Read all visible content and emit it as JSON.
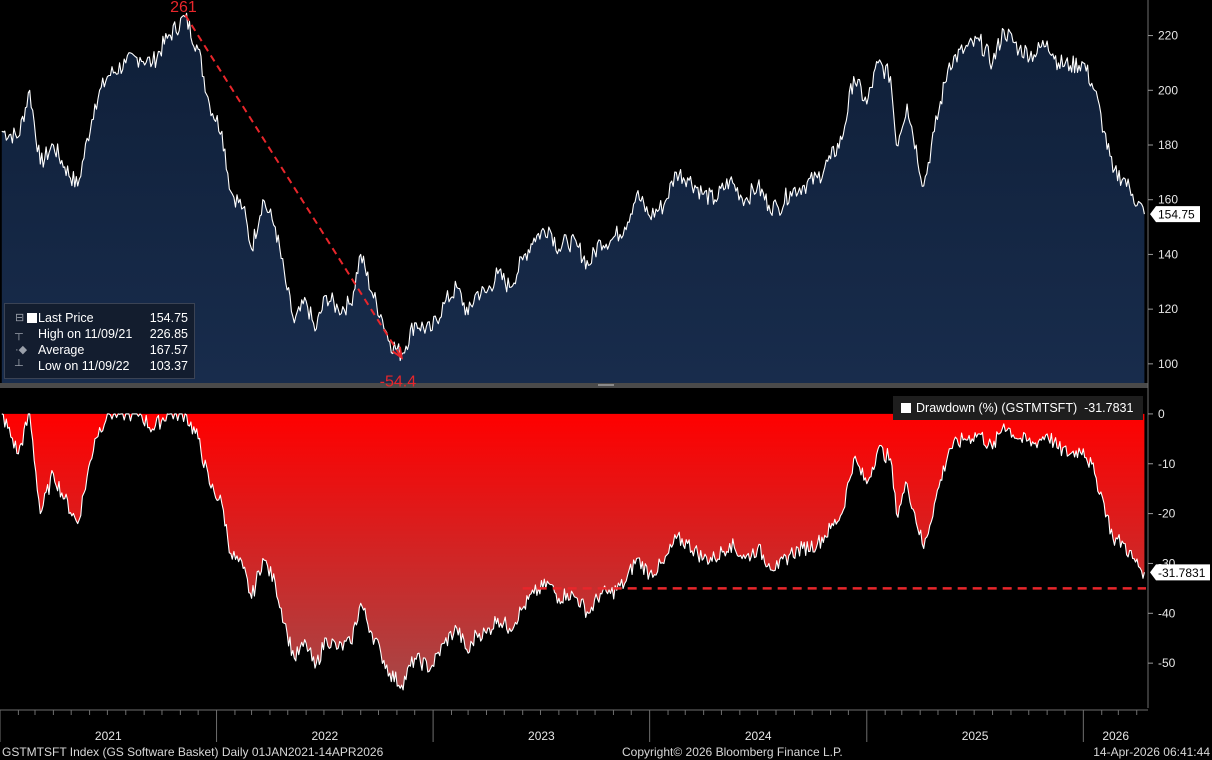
{
  "chart_data": [
    {
      "type": "area",
      "panel": "price",
      "series": [
        {
          "name": "Last Price",
          "x": [
            "2021-01-04",
            "2021-02-01",
            "2021-02-20",
            "2021-03-10",
            "2021-04-01",
            "2021-04-20",
            "2021-05-12",
            "2021-06-10",
            "2021-07-01",
            "2021-08-01",
            "2021-08-25",
            "2021-09-15",
            "2021-10-10",
            "2021-11-09",
            "2021-12-01",
            "2021-12-20",
            "2022-01-10",
            "2022-01-25",
            "2022-02-15",
            "2022-03-01",
            "2022-03-20",
            "2022-04-10",
            "2022-04-30",
            "2022-05-12",
            "2022-06-01",
            "2022-06-16",
            "2022-07-05",
            "2022-07-25",
            "2022-08-15",
            "2022-09-01",
            "2022-09-20",
            "2022-10-05",
            "2022-10-20",
            "2022-11-09",
            "2022-12-01",
            "2022-12-28",
            "2023-01-20",
            "2023-02-10",
            "2023-03-01",
            "2023-03-15",
            "2023-04-01",
            "2023-04-20",
            "2023-05-10",
            "2023-06-01",
            "2023-06-20",
            "2023-07-15",
            "2023-08-01",
            "2023-08-15",
            "2023-09-01",
            "2023-09-20",
            "2023-10-10",
            "2023-10-27",
            "2023-11-20",
            "2023-12-10",
            "2024-01-01",
            "2024-01-25",
            "2024-02-15",
            "2024-03-05",
            "2024-04-01",
            "2024-04-20",
            "2024-05-15",
            "2024-06-10",
            "2024-07-01",
            "2024-07-20",
            "2024-08-05",
            "2024-08-25",
            "2024-09-15",
            "2024-10-10",
            "2024-11-01",
            "2024-11-20",
            "2024-12-10",
            "2025-01-01",
            "2025-01-20",
            "2025-02-10",
            "2025-02-20",
            "2025-03-10",
            "2025-04-07",
            "2025-04-25",
            "2025-05-20",
            "2025-06-15",
            "2025-07-10",
            "2025-08-01",
            "2025-08-20",
            "2025-09-15",
            "2025-10-10",
            "2025-11-01",
            "2025-11-20",
            "2025-12-10",
            "2026-01-01",
            "2026-01-20",
            "2026-02-05",
            "2026-02-20",
            "2026-03-10",
            "2026-03-25",
            "2026-04-14"
          ],
          "values": [
            185,
            183,
            200,
            173,
            180,
            172,
            165,
            195,
            205,
            210,
            212,
            210,
            219,
            226.85,
            215,
            195,
            185,
            163,
            157,
            142,
            160,
            150,
            127,
            115,
            123,
            112,
            125,
            120,
            122,
            140,
            126,
            118,
            108,
            103.37,
            115,
            112,
            122,
            128,
            118,
            126,
            126,
            133,
            128,
            138,
            146,
            150,
            142,
            145,
            143,
            136,
            145,
            145,
            150,
            162,
            154,
            158,
            170,
            168,
            162,
            160,
            167,
            160,
            165,
            158,
            157,
            163,
            165,
            168,
            175,
            182,
            205,
            195,
            210,
            205,
            180,
            195,
            165,
            185,
            210,
            215,
            218,
            210,
            222,
            215,
            213,
            218,
            210,
            209,
            210,
            200,
            185,
            170,
            168,
            162,
            154.75
          ]
        }
      ],
      "annotations": {
        "peak_label": "261",
        "trough_label": "-54.4",
        "line_from": "2021-11-09",
        "line_to": "2022-11-09"
      },
      "ylim": [
        93,
        233
      ],
      "yticks": [
        100,
        120,
        140,
        160,
        180,
        200,
        220
      ],
      "last_value_label": "154.75",
      "legend": {
        "position": "bottom-left",
        "rows": [
          {
            "label": "Last Price",
            "value": "154.75"
          },
          {
            "label": "High on 11/09/21",
            "value": "226.85"
          },
          {
            "label": "Average",
            "value": "167.57"
          },
          {
            "label": "Low on 11/09/22",
            "value": "103.37"
          }
        ]
      },
      "colors": {
        "fill_top": "#10203a",
        "fill_bottom": "#16294a",
        "line": "#ffffff",
        "annotation": "#e8262b"
      }
    },
    {
      "type": "area",
      "panel": "drawdown",
      "series": [
        {
          "name": "Drawdown (%) (GSTMTSFT)",
          "x": [
            "2021-01-04",
            "2021-02-01",
            "2021-02-20",
            "2021-03-10",
            "2021-04-01",
            "2021-04-20",
            "2021-05-12",
            "2021-06-10",
            "2021-07-01",
            "2021-08-01",
            "2021-08-25",
            "2021-09-15",
            "2021-10-10",
            "2021-11-09",
            "2021-12-01",
            "2021-12-20",
            "2022-01-10",
            "2022-01-25",
            "2022-02-15",
            "2022-03-01",
            "2022-03-20",
            "2022-04-10",
            "2022-04-30",
            "2022-05-12",
            "2022-06-01",
            "2022-06-16",
            "2022-07-05",
            "2022-07-25",
            "2022-08-15",
            "2022-09-01",
            "2022-09-20",
            "2022-10-05",
            "2022-10-20",
            "2022-11-09",
            "2022-12-01",
            "2022-12-28",
            "2023-01-20",
            "2023-02-10",
            "2023-03-01",
            "2023-03-15",
            "2023-04-01",
            "2023-04-20",
            "2023-05-10",
            "2023-06-01",
            "2023-06-20",
            "2023-07-15",
            "2023-08-01",
            "2023-08-15",
            "2023-09-01",
            "2023-09-20",
            "2023-10-10",
            "2023-10-27",
            "2023-11-20",
            "2023-12-10",
            "2024-01-01",
            "2024-01-25",
            "2024-02-15",
            "2024-03-05",
            "2024-04-01",
            "2024-04-20",
            "2024-05-15",
            "2024-06-10",
            "2024-07-01",
            "2024-07-20",
            "2024-08-05",
            "2024-08-25",
            "2024-09-15",
            "2024-10-10",
            "2024-11-01",
            "2024-11-20",
            "2024-12-10",
            "2025-01-01",
            "2025-01-20",
            "2025-02-10",
            "2025-02-20",
            "2025-03-10",
            "2025-04-07",
            "2025-04-25",
            "2025-05-20",
            "2025-06-15",
            "2025-07-10",
            "2025-08-01",
            "2025-08-20",
            "2025-09-15",
            "2025-10-10",
            "2025-11-01",
            "2025-11-20",
            "2025-12-10",
            "2026-01-01",
            "2026-01-20",
            "2026-02-05",
            "2026-02-20",
            "2026-03-10",
            "2026-03-25",
            "2026-04-14"
          ],
          "values": [
            0,
            -8,
            0,
            -20,
            -12,
            -17,
            -22,
            -5,
            0,
            0,
            0,
            -3,
            0,
            0,
            -5,
            -14,
            -18,
            -28,
            -31,
            -37,
            -29,
            -34,
            -44,
            -49,
            -46,
            -51,
            -45,
            -47,
            -46,
            -38,
            -44,
            -48,
            -52,
            -54.4,
            -49,
            -51,
            -46,
            -43,
            -48,
            -44,
            -44,
            -41,
            -43,
            -39,
            -36,
            -34,
            -37,
            -36,
            -37,
            -40,
            -36,
            -36,
            -34,
            -29,
            -32,
            -30,
            -25,
            -26,
            -29,
            -29,
            -26,
            -29,
            -27,
            -30,
            -31,
            -28,
            -27,
            -26,
            -23,
            -20,
            -9,
            -14,
            -7,
            -9,
            -20,
            -14,
            -27,
            -18,
            -7,
            -5,
            -4,
            -7,
            -2,
            -5,
            -6,
            -4,
            -7,
            -8,
            -7,
            -12,
            -18,
            -25,
            -26,
            -29,
            -31.7831
          ]
        }
      ],
      "reference_line": {
        "value": -35,
        "from": "2023-06-01"
      },
      "ylim": [
        -59,
        5
      ],
      "yticks": [
        0,
        -10,
        -20,
        -30,
        -40,
        -50
      ],
      "last_value_label": "-31.7831",
      "legend": {
        "position": "top-right",
        "label": "Drawdown (%) (GSTMTSFT)",
        "value": "-31.7831"
      },
      "colors": {
        "fill_top": "#ff0000",
        "fill_bottom": "#a94a4a",
        "line": "#ffffff",
        "reference": "#e8262b"
      }
    }
  ],
  "x_axis": {
    "xlim": [
      "2021-01-01",
      "2026-04-20"
    ],
    "year_labels": [
      "2021",
      "2022",
      "2023",
      "2024",
      "2025",
      "2026"
    ]
  },
  "footer": {
    "left": "GSTMTSFT Index (GS Software Basket) Daily 01JAN2021-14APR2026",
    "center": "Copyright© 2026 Bloomberg Finance L.P.",
    "right": "14-Apr-2026 06:41:44"
  }
}
